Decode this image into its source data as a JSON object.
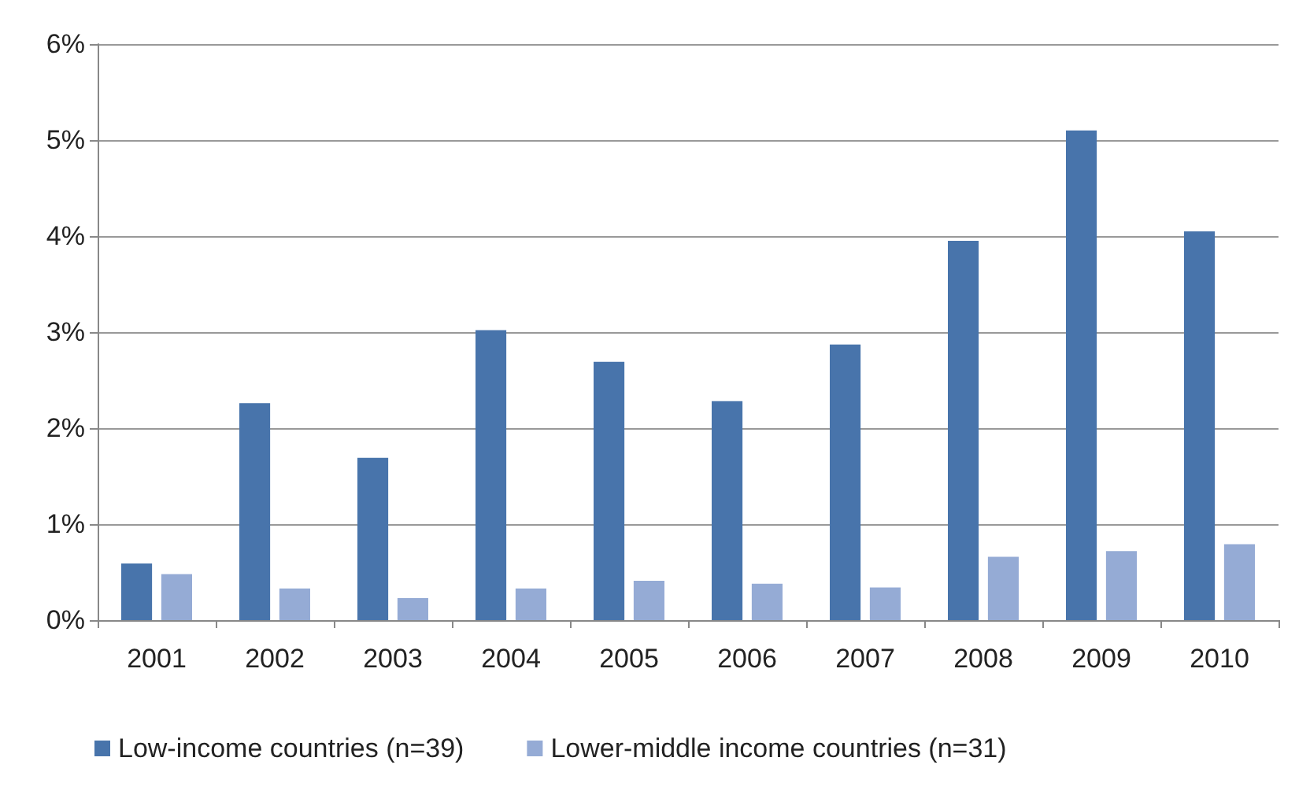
{
  "chart_data": {
    "type": "bar",
    "categories": [
      "2001",
      "2002",
      "2003",
      "2004",
      "2005",
      "2006",
      "2007",
      "2008",
      "2009",
      "2010"
    ],
    "series": [
      {
        "name": "Low-income countries (n=39)",
        "color": "#4874ab",
        "values": [
          0.59,
          2.26,
          1.69,
          3.02,
          2.69,
          2.28,
          2.87,
          3.95,
          5.1,
          4.05
        ]
      },
      {
        "name": "Lower-middle income countries (n=31)",
        "color": "#95abd5",
        "values": [
          0.48,
          0.33,
          0.23,
          0.33,
          0.41,
          0.38,
          0.34,
          0.66,
          0.72,
          0.79
        ]
      }
    ],
    "ylim": [
      0,
      6
    ],
    "yticks": [
      {
        "value": 0,
        "label": "0%"
      },
      {
        "value": 1,
        "label": "1%"
      },
      {
        "value": 2,
        "label": "2%"
      },
      {
        "value": 3,
        "label": "3%"
      },
      {
        "value": 4,
        "label": "4%"
      },
      {
        "value": 5,
        "label": "5%"
      },
      {
        "value": 6,
        "label": "6%"
      }
    ],
    "grid": "y",
    "legend": "bottom left"
  }
}
